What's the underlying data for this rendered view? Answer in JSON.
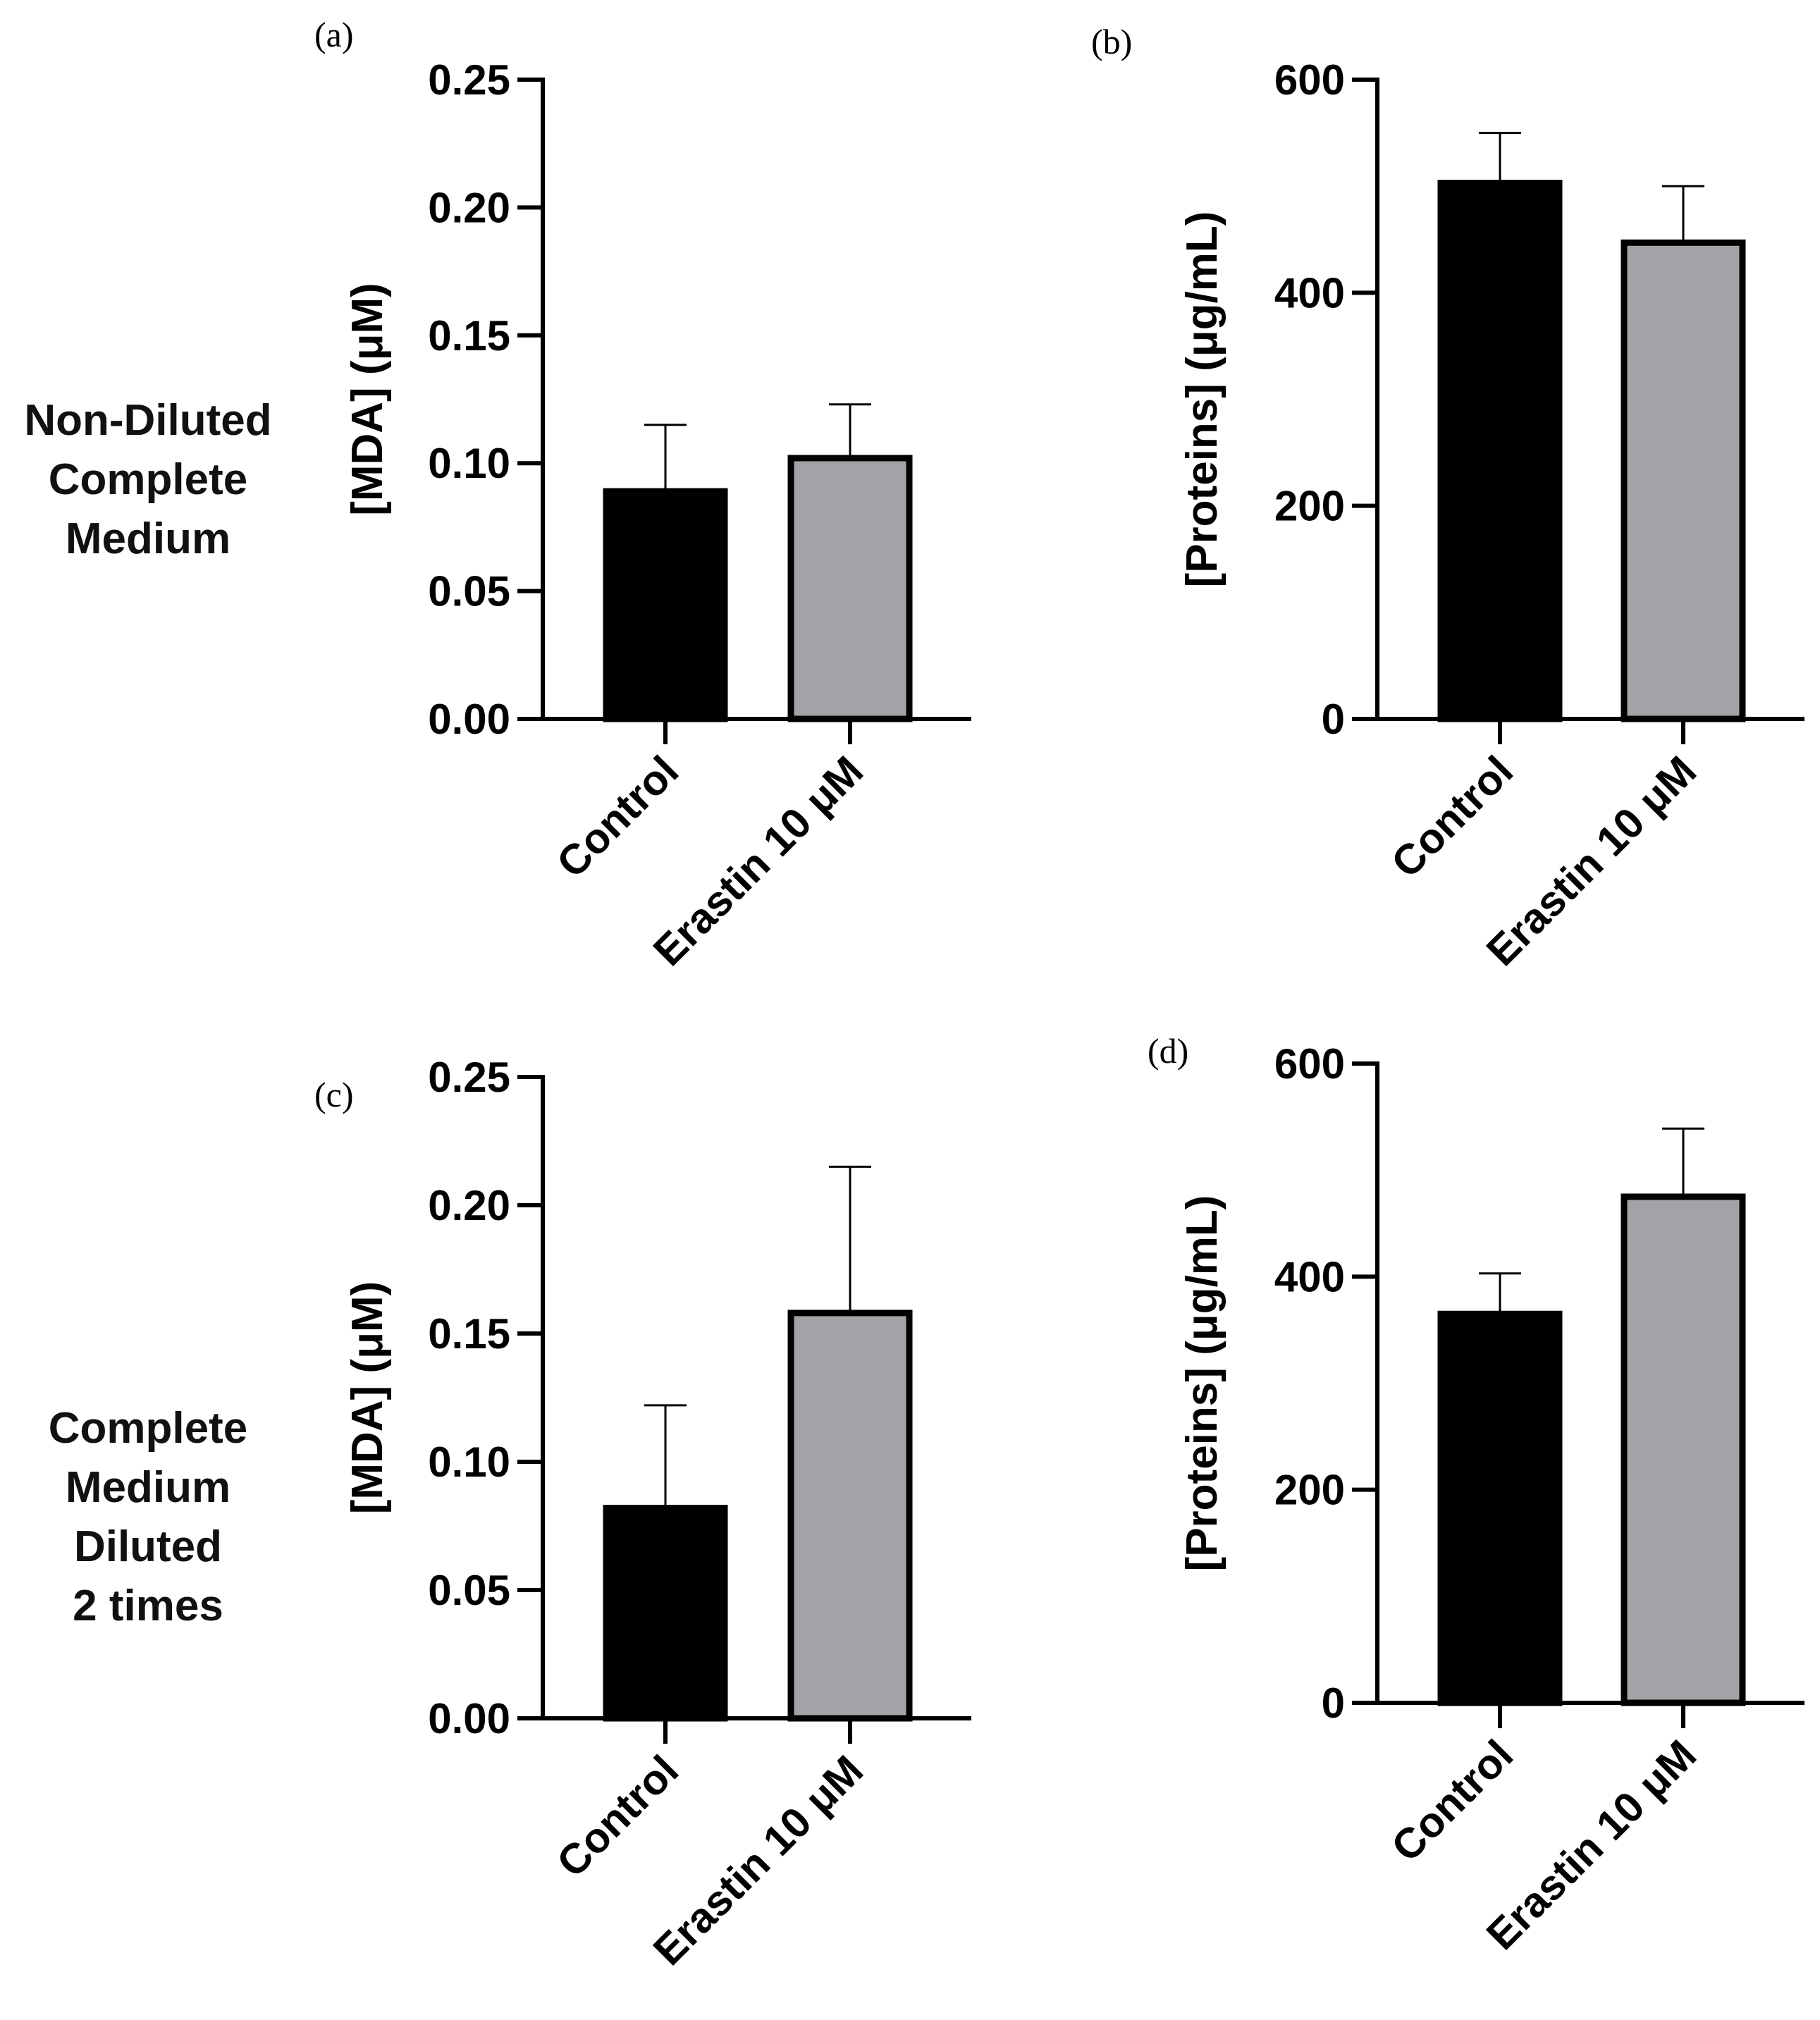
{
  "row_labels": [
    [
      "Non-Diluted",
      "Complete",
      "Medium"
    ],
    [
      "Complete",
      "Medium",
      "Diluted",
      "2 times"
    ]
  ],
  "colors": {
    "control": "#000000",
    "erastin": "#a3a3a7",
    "stroke": "#000000"
  },
  "chart_data": [
    {
      "panel": "(a)",
      "type": "bar",
      "categories": [
        "Control",
        "Erastin 10 μM"
      ],
      "values": [
        0.089,
        0.102
      ],
      "errors": [
        0.026,
        0.021
      ],
      "ylabel": "[MDA] (μM)",
      "ylim": [
        0,
        0.25
      ],
      "yticks": [
        "0.00",
        "0.05",
        "0.10",
        "0.15",
        "0.20",
        "0.25"
      ]
    },
    {
      "panel": "(b)",
      "type": "bar",
      "categories": [
        "Control",
        "Erastin 10 μM"
      ],
      "values": [
        503,
        447
      ],
      "errors": [
        47,
        53
      ],
      "ylabel": "[Proteins] (μg/mL)",
      "ylim": [
        0,
        600
      ],
      "yticks": [
        "0",
        "200",
        "400",
        "600"
      ]
    },
    {
      "panel": "(c)",
      "type": "bar",
      "categories": [
        "Control",
        "Erastin 10 μM"
      ],
      "values": [
        0.082,
        0.158
      ],
      "errors": [
        0.04,
        0.057
      ],
      "ylabel": "[MDA] (μM)",
      "ylim": [
        0,
        0.25
      ],
      "yticks": [
        "0.00",
        "0.05",
        "0.10",
        "0.15",
        "0.20",
        "0.25"
      ]
    },
    {
      "panel": "(d)",
      "type": "bar",
      "categories": [
        "Control",
        "Erastin 10 μM"
      ],
      "values": [
        365,
        475
      ],
      "errors": [
        38,
        64
      ],
      "ylabel": "[Proteins] (μg/mL)",
      "ylim": [
        0,
        600
      ],
      "yticks": [
        "0",
        "200",
        "400",
        "600"
      ]
    }
  ]
}
